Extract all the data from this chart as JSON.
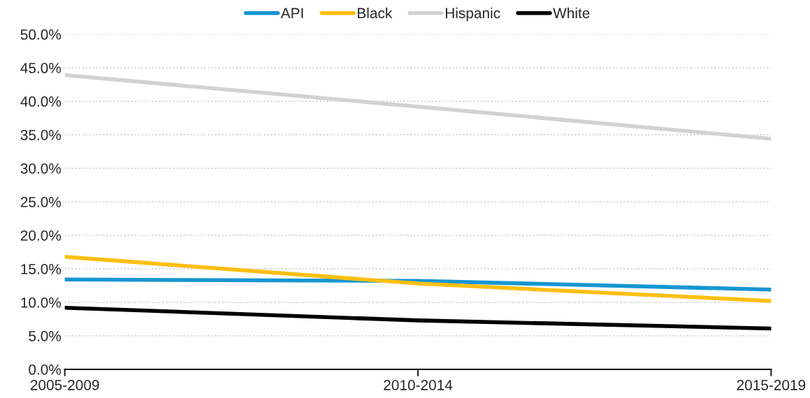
{
  "chart_data": {
    "type": "line",
    "categories": [
      "2005-2009",
      "2010-2014",
      "2015-2019"
    ],
    "series": [
      {
        "name": "API",
        "color": "#1696d2",
        "values": [
          13.4,
          13.2,
          11.9
        ]
      },
      {
        "name": "Black",
        "color": "#fdbf11",
        "values": [
          16.8,
          12.8,
          10.2
        ]
      },
      {
        "name": "Hispanic",
        "color": "#d2d2d2",
        "values": [
          43.9,
          39.2,
          34.4
        ]
      },
      {
        "name": "White",
        "color": "#000000",
        "values": [
          9.2,
          7.3,
          6.1
        ]
      }
    ],
    "ylim": [
      0,
      50
    ],
    "yticks": [
      {
        "value": 0,
        "label": "0.0%"
      },
      {
        "value": 5,
        "label": "5.0%"
      },
      {
        "value": 10,
        "label": "10.0%"
      },
      {
        "value": 15,
        "label": "15.0%"
      },
      {
        "value": 20,
        "label": "20.0%"
      },
      {
        "value": 25,
        "label": "25.0%"
      },
      {
        "value": 30,
        "label": "30.0%"
      },
      {
        "value": 35,
        "label": "35.0%"
      },
      {
        "value": 40,
        "label": "40.0%"
      },
      {
        "value": 45,
        "label": "45.0%"
      },
      {
        "value": 50,
        "label": "50.0%"
      }
    ],
    "grid": "y",
    "legend": "top",
    "marker": "none",
    "line_style": "solid"
  }
}
